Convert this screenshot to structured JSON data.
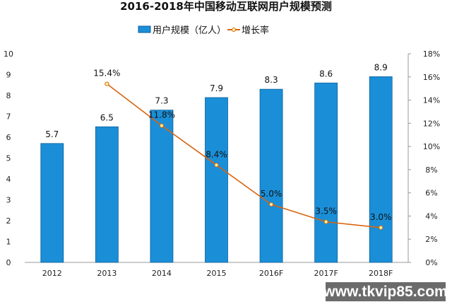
{
  "chart_data": {
    "type": "bar",
    "title": "2016-2018年中国移动互联网用户规模预测",
    "categories": [
      "2012",
      "2013",
      "2014",
      "2015",
      "2016F",
      "2017F",
      "2018F"
    ],
    "series": [
      {
        "name": "用户规模（亿人）",
        "type": "bar",
        "axis": "left",
        "values": [
          5.7,
          6.5,
          7.3,
          7.9,
          8.3,
          8.6,
          8.9
        ],
        "color": "#1a8fd8"
      },
      {
        "name": "增长率",
        "type": "line",
        "axis": "right",
        "values": [
          null,
          15.4,
          11.8,
          8.4,
          5.0,
          3.5,
          3.0
        ],
        "labels": [
          "",
          "15.4%",
          "11.8%",
          "8.4%",
          "5.0%",
          "3.5%",
          "3.0%"
        ],
        "color": "#d9640f"
      }
    ],
    "ylim_left": [
      0,
      10
    ],
    "yticks_left": [
      "0",
      "1",
      "2",
      "3",
      "4",
      "5",
      "6",
      "7",
      "8",
      "9",
      "10"
    ],
    "ylim_right": [
      0,
      18
    ],
    "yticks_right": [
      "0%",
      "2%",
      "4%",
      "6%",
      "8%",
      "10%",
      "12%",
      "14%",
      "16%",
      "18%"
    ],
    "grid": false,
    "legend_placement": "top"
  },
  "watermark": "www.tkvip85.com"
}
